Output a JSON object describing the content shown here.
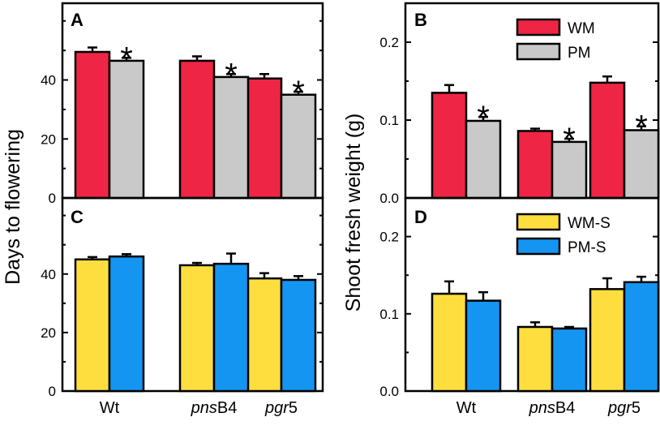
{
  "chart_data": [
    {
      "panel": "A",
      "type": "bar",
      "categories": [
        "Wt",
        "pnsB4",
        "pgr5"
      ],
      "series": [
        {
          "name": "WM",
          "color": "#ef2545",
          "values": [
            49.5,
            46.5,
            40.5
          ],
          "errors": [
            1.5,
            1.5,
            1.5
          ],
          "significant": [
            false,
            false,
            false
          ]
        },
        {
          "name": "PM",
          "color": "#c9c9c9",
          "values": [
            46.5,
            41.0,
            35.0
          ],
          "errors": [
            1.0,
            1.0,
            1.0
          ],
          "significant": [
            true,
            true,
            true
          ]
        }
      ],
      "ylabel": "Days to flowering",
      "ylim": [
        0,
        66
      ],
      "yticks": [
        0,
        20,
        40
      ],
      "legend": "none"
    },
    {
      "panel": "B",
      "type": "bar",
      "categories": [
        "Wt",
        "pnsB4",
        "pgr5"
      ],
      "series": [
        {
          "name": "WM",
          "color": "#ef2545",
          "values": [
            0.135,
            0.086,
            0.148
          ],
          "errors": [
            0.01,
            0.003,
            0.008
          ],
          "significant": [
            false,
            false,
            false
          ]
        },
        {
          "name": "PM",
          "color": "#c9c9c9",
          "values": [
            0.099,
            0.072,
            0.087
          ],
          "errors": [
            0.005,
            0.004,
            0.005
          ],
          "significant": [
            true,
            true,
            true
          ]
        }
      ],
      "ylabel": "Shoot fresh weight (g)",
      "ylim": [
        0,
        0.25
      ],
      "yticks": [
        0.0,
        0.1,
        0.2
      ],
      "legend": "top-right"
    },
    {
      "panel": "C",
      "type": "bar",
      "categories": [
        "Wt",
        "pnsB4",
        "pgr5"
      ],
      "series": [
        {
          "name": "WM-S",
          "color": "#fede3f",
          "values": [
            45.0,
            43.0,
            38.5
          ],
          "errors": [
            0.8,
            0.8,
            1.8
          ],
          "significant": [
            false,
            false,
            false
          ]
        },
        {
          "name": "PM-S",
          "color": "#1495f2",
          "values": [
            46.0,
            43.5,
            38.0
          ],
          "errors": [
            0.8,
            3.5,
            1.3
          ],
          "significant": [
            false,
            false,
            false
          ]
        }
      ],
      "ylabel": "Days to flowering",
      "ylim": [
        0,
        66
      ],
      "yticks": [
        0,
        20,
        40
      ],
      "legend": "none"
    },
    {
      "panel": "D",
      "type": "bar",
      "categories": [
        "Wt",
        "pnsB4",
        "pgr5"
      ],
      "series": [
        {
          "name": "WM-S",
          "color": "#fede3f",
          "values": [
            0.126,
            0.083,
            0.132
          ],
          "errors": [
            0.016,
            0.006,
            0.014
          ],
          "significant": [
            false,
            false,
            false
          ]
        },
        {
          "name": "PM-S",
          "color": "#1495f2",
          "values": [
            0.117,
            0.081,
            0.141
          ],
          "errors": [
            0.011,
            0.002,
            0.007
          ],
          "significant": [
            false,
            false,
            false
          ]
        }
      ],
      "ylabel": "Shoot fresh weight (g)",
      "ylim": [
        0,
        0.25
      ],
      "yticks": [
        0.0,
        0.1,
        0.2
      ],
      "legend": "top-right"
    }
  ],
  "category_labels": [
    "Wt",
    "pnsB4",
    "pgr5"
  ],
  "category_label_parts": [
    {
      "italic": "",
      "plain": "Wt"
    },
    {
      "italic": "pns",
      "plain": "B4"
    },
    {
      "italic": "pgr",
      "plain": "5"
    }
  ],
  "significance_marker": "*",
  "ylabel_left": "Days to flowering",
  "ylabel_right": "Shoot fresh weight (g)"
}
